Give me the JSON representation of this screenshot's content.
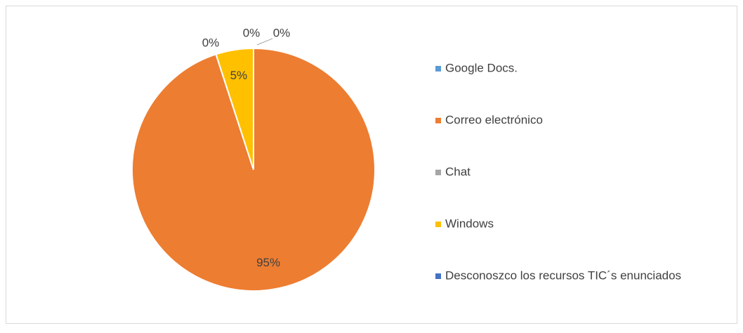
{
  "chart_data": {
    "type": "pie",
    "categories": [
      "Google Docs.",
      "Correo electrónico",
      "Chat",
      "Windows",
      "Desconoszco los recursos TIC´s enunciados"
    ],
    "values": [
      0,
      95,
      0,
      5,
      0
    ],
    "value_labels": [
      "0%",
      "95%",
      "0%",
      "5%",
      "0%"
    ],
    "colors": [
      "#5b9bd5",
      "#ed7d31",
      "#a5a5a5",
      "#ffc000",
      "#4472c4"
    ],
    "legend": "right"
  }
}
